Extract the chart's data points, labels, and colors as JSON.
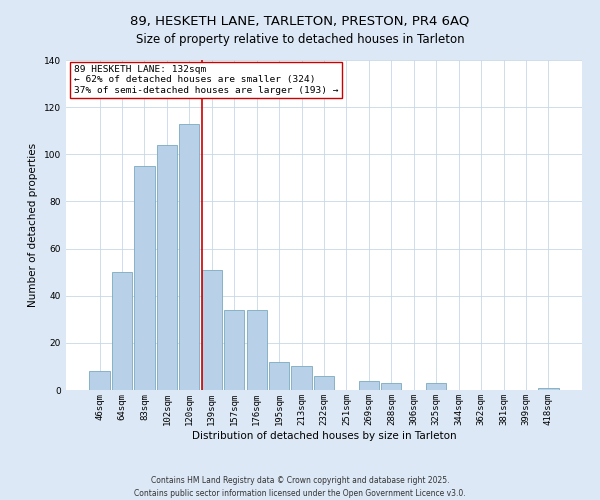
{
  "title": "89, HESKETH LANE, TARLETON, PRESTON, PR4 6AQ",
  "subtitle": "Size of property relative to detached houses in Tarleton",
  "xlabel": "Distribution of detached houses by size in Tarleton",
  "ylabel": "Number of detached properties",
  "bar_labels": [
    "46sqm",
    "64sqm",
    "83sqm",
    "102sqm",
    "120sqm",
    "139sqm",
    "157sqm",
    "176sqm",
    "195sqm",
    "213sqm",
    "232sqm",
    "251sqm",
    "269sqm",
    "288sqm",
    "306sqm",
    "325sqm",
    "344sqm",
    "362sqm",
    "381sqm",
    "399sqm",
    "418sqm"
  ],
  "bar_values": [
    8,
    50,
    95,
    104,
    113,
    51,
    34,
    34,
    12,
    10,
    6,
    0,
    4,
    3,
    0,
    3,
    0,
    0,
    0,
    0,
    1
  ],
  "bar_color": "#b8d0e8",
  "bar_edge_color": "#7aaabf",
  "vline_x_index": 5,
  "vline_color": "#cc0000",
  "annotation_title": "89 HESKETH LANE: 132sqm",
  "annotation_line1": "← 62% of detached houses are smaller (324)",
  "annotation_line2": "37% of semi-detached houses are larger (193) →",
  "annotation_box_color": "#ffffff",
  "annotation_box_edge": "#cc0000",
  "ylim": [
    0,
    140
  ],
  "yticks": [
    0,
    20,
    40,
    60,
    80,
    100,
    120,
    140
  ],
  "footer1": "Contains HM Land Registry data © Crown copyright and database right 2025.",
  "footer2": "Contains public sector information licensed under the Open Government Licence v3.0.",
  "bg_color": "#dce8f5",
  "plot_bg_color": "#ffffff",
  "grid_color": "#c8d8e8",
  "title_fontsize": 9.5,
  "subtitle_fontsize": 8.5,
  "axis_label_fontsize": 7.5,
  "tick_fontsize": 6.5,
  "annotation_fontsize": 6.8,
  "footer_fontsize": 5.5
}
